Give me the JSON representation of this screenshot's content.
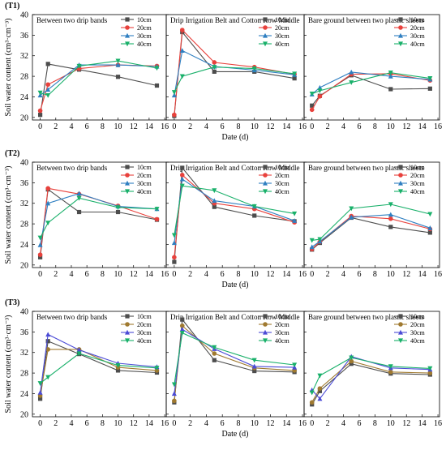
{
  "figure": {
    "xlabel": "Date (d)",
    "ylabel": "Soil water content (cm³·cm⁻³)"
  },
  "chart_data": [
    {
      "type": "line",
      "row_label": "(T1)",
      "ylim": [
        19.5,
        40
      ],
      "yticks": [
        20,
        24,
        28,
        32,
        36,
        40
      ],
      "xticks": [
        0,
        2,
        4,
        6,
        8,
        10,
        12,
        14,
        16
      ],
      "grid": false,
      "legend_position": "top-right",
      "panels": [
        {
          "title": "Between two drip bands",
          "x": [
            0,
            1,
            5,
            10,
            15
          ],
          "series": [
            {
              "name": "10cm",
              "color": "#4d4d4d",
              "marker": "square",
              "values": [
                20.5,
                30.4,
                29.3,
                27.9,
                26.2
              ]
            },
            {
              "name": "20cm",
              "color": "#e8413c",
              "marker": "circle",
              "values": [
                21.3,
                26.4,
                29.5,
                30.2,
                30.0
              ]
            },
            {
              "name": "30cm",
              "color": "#2f7fc1",
              "marker": "triangle",
              "values": [
                24.3,
                25.4,
                30.2,
                30.2,
                29.9
              ]
            },
            {
              "name": "40cm",
              "color": "#19b06a",
              "marker": "tri-down",
              "values": [
                24.8,
                24.3,
                30.0,
                31.0,
                29.6
              ]
            }
          ]
        },
        {
          "title": "Drip Irrigation Belt and Cotton Row Middle",
          "x": [
            0,
            1,
            5,
            10,
            15
          ],
          "series": [
            {
              "name": "10cm",
              "color": "#4d4d4d",
              "marker": "square",
              "values": [
                20.3,
                36.6,
                28.9,
                28.9,
                27.6
              ]
            },
            {
              "name": "20cm",
              "color": "#e8413c",
              "marker": "circle",
              "values": [
                20.5,
                37.0,
                30.7,
                29.8,
                28.4
              ]
            },
            {
              "name": "30cm",
              "color": "#2f7fc1",
              "marker": "triangle",
              "values": [
                24.3,
                33.0,
                29.9,
                29.2,
                28.3
              ]
            },
            {
              "name": "40cm",
              "color": "#19b06a",
              "marker": "tri-down",
              "values": [
                24.9,
                28.0,
                29.8,
                29.5,
                28.5
              ]
            }
          ]
        },
        {
          "title": "Bare ground between two plastic sheets",
          "x": [
            0,
            1,
            5,
            10,
            15
          ],
          "series": [
            {
              "name": "10cm",
              "color": "#4d4d4d",
              "marker": "square",
              "values": [
                22.3,
                24.2,
                28.2,
                25.5,
                25.6
              ]
            },
            {
              "name": "20cm",
              "color": "#e8413c",
              "marker": "circle",
              "values": [
                21.5,
                24.1,
                28.4,
                28.5,
                27.2
              ]
            },
            {
              "name": "30cm",
              "color": "#2f7fc1",
              "marker": "triangle",
              "values": [
                24.5,
                25.8,
                28.8,
                28.0,
                27.4
              ]
            },
            {
              "name": "40cm",
              "color": "#19b06a",
              "marker": "tri-down",
              "values": [
                24.6,
                25.2,
                26.8,
                28.7,
                27.6
              ]
            }
          ]
        }
      ]
    },
    {
      "type": "line",
      "row_label": "(T2)",
      "ylim": [
        19.5,
        40
      ],
      "yticks": [
        20,
        24,
        28,
        32,
        36,
        40
      ],
      "xticks": [
        0,
        2,
        4,
        6,
        8,
        10,
        12,
        14,
        16
      ],
      "grid": false,
      "legend_position": "top-right",
      "panels": [
        {
          "title": "Between two drip bands",
          "x": [
            0,
            1,
            5,
            10,
            15
          ],
          "series": [
            {
              "name": "10cm",
              "color": "#4d4d4d",
              "marker": "square",
              "values": [
                21.5,
                34.7,
                30.3,
                30.3,
                28.8
              ]
            },
            {
              "name": "20cm",
              "color": "#e8413c",
              "marker": "circle",
              "values": [
                22.0,
                34.9,
                33.8,
                31.5,
                28.9
              ]
            },
            {
              "name": "30cm",
              "color": "#2f7fc1",
              "marker": "triangle",
              "values": [
                23.9,
                32.0,
                33.9,
                31.4,
                30.9
              ]
            },
            {
              "name": "40cm",
              "color": "#19b06a",
              "marker": "tri-down",
              "values": [
                25.3,
                28.2,
                33.0,
                31.2,
                30.9
              ]
            }
          ]
        },
        {
          "title": "Drip Irrigation Belt and Cotton Row Middle",
          "x": [
            0,
            1,
            5,
            10,
            15
          ],
          "series": [
            {
              "name": "10cm",
              "color": "#4d4d4d",
              "marker": "square",
              "values": [
                20.6,
                38.9,
                31.3,
                29.6,
                28.5
              ]
            },
            {
              "name": "20cm",
              "color": "#e8413c",
              "marker": "circle",
              "values": [
                21.5,
                37.5,
                32.0,
                30.9,
                28.3
              ]
            },
            {
              "name": "30cm",
              "color": "#2f7fc1",
              "marker": "triangle",
              "values": [
                24.3,
                36.7,
                32.5,
                31.4,
                28.6
              ]
            },
            {
              "name": "40cm",
              "color": "#19b06a",
              "marker": "tri-down",
              "values": [
                25.8,
                35.4,
                34.5,
                31.4,
                30.0
              ]
            }
          ]
        },
        {
          "title": "Bare ground between two plastic sheets",
          "x": [
            0,
            1,
            5,
            10,
            15
          ],
          "series": [
            {
              "name": "10cm",
              "color": "#4d4d4d",
              "marker": "square",
              "values": [
                23.0,
                24.3,
                29.2,
                27.4,
                26.3
              ]
            },
            {
              "name": "20cm",
              "color": "#e8413c",
              "marker": "circle",
              "values": [
                23.1,
                24.5,
                29.5,
                29.0,
                27.0
              ]
            },
            {
              "name": "30cm",
              "color": "#2f7fc1",
              "marker": "triangle",
              "values": [
                23.5,
                24.6,
                29.3,
                29.8,
                27.2
              ]
            },
            {
              "name": "40cm",
              "color": "#19b06a",
              "marker": "tri-down",
              "values": [
                24.8,
                25.0,
                31.0,
                31.8,
                29.9
              ]
            }
          ]
        }
      ]
    },
    {
      "type": "line",
      "row_label": "(T3)",
      "ylim": [
        19.5,
        40
      ],
      "yticks": [
        20,
        24,
        28,
        32,
        36,
        40
      ],
      "xticks": [
        0,
        2,
        4,
        6,
        8,
        10,
        12,
        14,
        16
      ],
      "grid": false,
      "legend_position": "top-right",
      "panels": [
        {
          "title": "Between two drip bands",
          "x": [
            0,
            1,
            5,
            10,
            15
          ],
          "series": [
            {
              "name": "10cm",
              "color": "#4d4d4d",
              "marker": "square",
              "values": [
                23.0,
                34.2,
                31.7,
                28.5,
                28.1
              ]
            },
            {
              "name": "20cm",
              "color": "#a07a30",
              "marker": "circle",
              "values": [
                23.6,
                32.6,
                32.6,
                29.1,
                28.5
              ]
            },
            {
              "name": "30cm",
              "color": "#4b4bd6",
              "marker": "triangle",
              "values": [
                24.2,
                35.5,
                32.5,
                29.9,
                29.2
              ]
            },
            {
              "name": "40cm",
              "color": "#19b06a",
              "marker": "tri-down",
              "values": [
                26.0,
                27.2,
                31.8,
                29.5,
                29.0
              ]
            }
          ]
        },
        {
          "title": "Drip Irrigation Belt and Cotton Row Middle",
          "x": [
            0,
            1,
            5,
            10,
            15
          ],
          "series": [
            {
              "name": "10cm",
              "color": "#4d4d4d",
              "marker": "square",
              "values": [
                22.3,
                38.4,
                30.5,
                28.4,
                28.2
              ]
            },
            {
              "name": "20cm",
              "color": "#a07a30",
              "marker": "circle",
              "values": [
                22.6,
                37.2,
                31.8,
                29.0,
                28.5
              ]
            },
            {
              "name": "30cm",
              "color": "#4b4bd6",
              "marker": "triangle",
              "values": [
                24.0,
                36.5,
                32.7,
                29.3,
                29.1
              ]
            },
            {
              "name": "40cm",
              "color": "#19b06a",
              "marker": "tri-down",
              "values": [
                25.8,
                35.8,
                33.0,
                30.5,
                29.6
              ]
            }
          ]
        },
        {
          "title": "Bare ground between two plastic sheets",
          "x": [
            0,
            1,
            5,
            10,
            15
          ],
          "series": [
            {
              "name": "10cm",
              "color": "#4d4d4d",
              "marker": "square",
              "values": [
                21.9,
                24.5,
                29.8,
                27.9,
                27.7
              ]
            },
            {
              "name": "20cm",
              "color": "#a07a30",
              "marker": "circle",
              "values": [
                22.3,
                25.0,
                30.3,
                28.2,
                28.0
              ]
            },
            {
              "name": "30cm",
              "color": "#4b4bd6",
              "marker": "triangle",
              "values": [
                24.7,
                23.0,
                31.2,
                29.0,
                28.7
              ]
            },
            {
              "name": "40cm",
              "color": "#19b06a",
              "marker": "tri-down",
              "values": [
                24.2,
                27.5,
                31.0,
                29.3,
                28.9
              ]
            }
          ]
        }
      ]
    }
  ]
}
